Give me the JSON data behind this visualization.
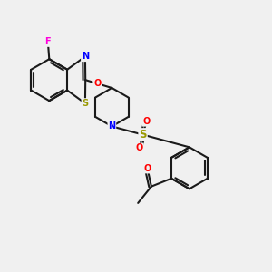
{
  "bg_color": "#f0f0f0",
  "bond_color": "#1a1a1a",
  "bond_width": 1.5,
  "atom_colors": {
    "F": "#ff00dd",
    "N": "#0000ff",
    "O": "#ff0000",
    "S": "#999900",
    "C": "#1a1a1a"
  },
  "figsize": [
    3.0,
    3.0
  ],
  "dpi": 100
}
